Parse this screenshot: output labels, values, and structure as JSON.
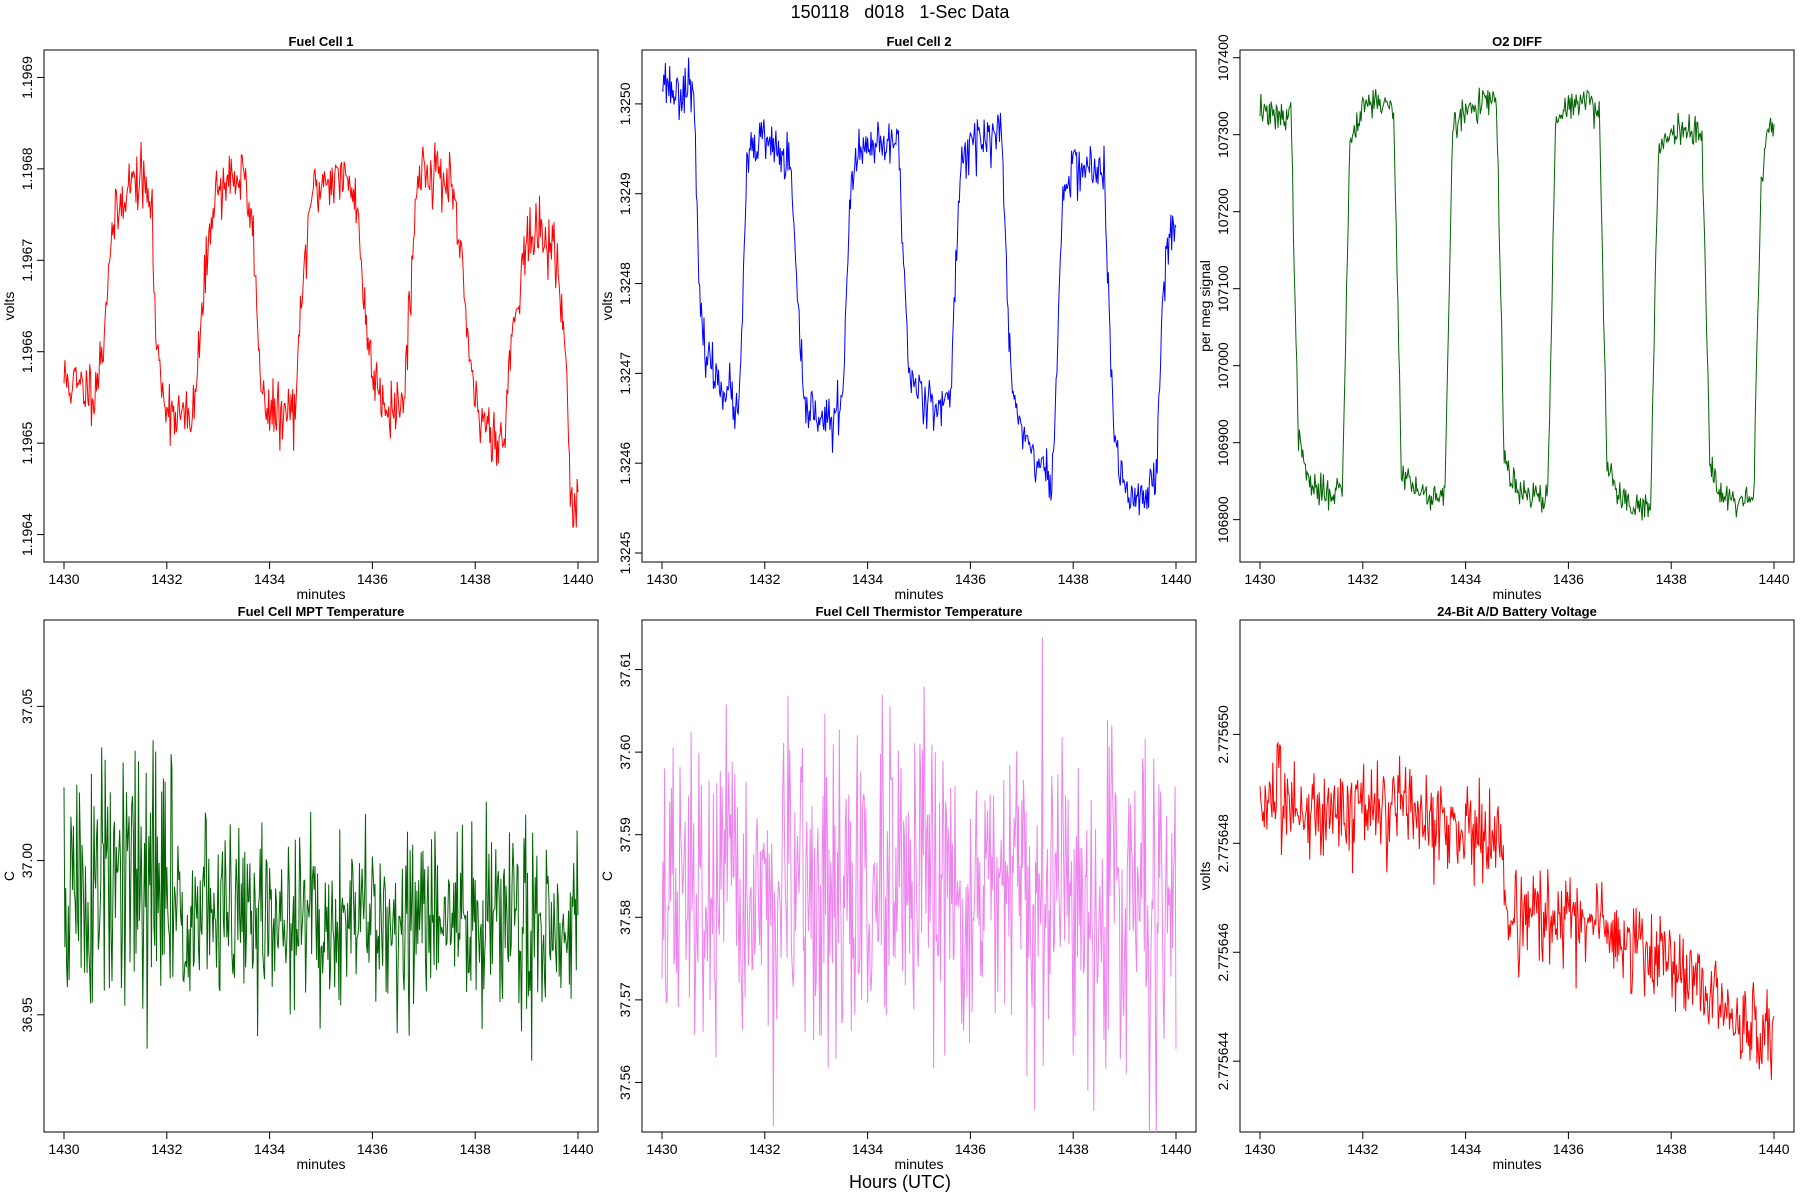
{
  "page": {
    "title": "150118   d018   1-Sec Data",
    "footer_label": "Hours (UTC)"
  },
  "chart_data": [
    {
      "type": "line",
      "title": "Fuel Cell 1",
      "xlabel": "minutes",
      "ylabel": "volts",
      "color": "#ff0000",
      "xlim": [
        1430,
        1440
      ],
      "ylim": [
        1.19637,
        1.19693
      ],
      "xticks": [
        1430,
        1432,
        1434,
        1436,
        1438,
        1440
      ],
      "xtick_labels": [
        "1430",
        "1432",
        "1434",
        "1436",
        "1438",
        "1440"
      ],
      "yticks": [
        1.1964,
        1.1965,
        1.1966,
        1.1967,
        1.1968,
        1.1969
      ],
      "ytick_labels": [
        "1.1964",
        "1.1965",
        "1.1966",
        "1.1967",
        "1.1968",
        "1.1969"
      ],
      "x": [
        1430.0,
        1430.3,
        1430.6,
        1430.75,
        1430.9,
        1431.2,
        1431.5,
        1431.7,
        1431.8,
        1432.0,
        1432.3,
        1432.5,
        1432.7,
        1432.9,
        1433.2,
        1433.5,
        1433.7,
        1433.8,
        1434.0,
        1434.3,
        1434.5,
        1434.65,
        1434.8,
        1435.1,
        1435.4,
        1435.7,
        1435.85,
        1436.0,
        1436.3,
        1436.6,
        1436.75,
        1436.9,
        1437.2,
        1437.5,
        1437.75,
        1437.9,
        1438.1,
        1438.4,
        1438.55,
        1438.75,
        1439.0,
        1439.3,
        1439.6,
        1439.75,
        1439.9,
        1440.0
      ],
      "values": [
        1.19657,
        1.19656,
        1.19656,
        1.1966,
        1.19672,
        1.19678,
        1.19679,
        1.19676,
        1.1966,
        1.19654,
        1.19653,
        1.19652,
        1.19665,
        1.19677,
        1.19679,
        1.19679,
        1.19672,
        1.19658,
        1.19653,
        1.19653,
        1.19654,
        1.19667,
        1.19677,
        1.19679,
        1.19679,
        1.19677,
        1.19664,
        1.19658,
        1.19654,
        1.19654,
        1.19668,
        1.1968,
        1.1968,
        1.19678,
        1.1967,
        1.19657,
        1.19653,
        1.19651,
        1.1965,
        1.19664,
        1.19672,
        1.19673,
        1.1967,
        1.1966,
        1.19642,
        1.19644
      ],
      "noise": 3e-05,
      "seed": 11
    },
    {
      "type": "line",
      "title": "Fuel Cell 2",
      "xlabel": "minutes",
      "ylabel": "volts",
      "color": "#0000ff",
      "xlim": [
        1430,
        1440
      ],
      "ylim": [
        1.32449,
        1.32506
      ],
      "xticks": [
        1430,
        1432,
        1434,
        1436,
        1438,
        1440
      ],
      "xtick_labels": [
        "1430",
        "1432",
        "1434",
        "1436",
        "1438",
        "1440"
      ],
      "yticks": [
        1.3245,
        1.3246,
        1.3247,
        1.3248,
        1.3249,
        1.325
      ],
      "ytick_labels": [
        "1.3245",
        "1.3246",
        "1.3247",
        "1.3248",
        "1.3249",
        "1.3250"
      ],
      "x": [
        1430.0,
        1430.3,
        1430.6,
        1430.75,
        1431.0,
        1431.3,
        1431.5,
        1431.65,
        1431.9,
        1432.2,
        1432.5,
        1432.75,
        1433.0,
        1433.3,
        1433.5,
        1433.7,
        1434.0,
        1434.3,
        1434.6,
        1434.8,
        1435.0,
        1435.3,
        1435.6,
        1435.8,
        1436.0,
        1436.3,
        1436.6,
        1436.8,
        1437.0,
        1437.3,
        1437.6,
        1437.8,
        1438.0,
        1438.3,
        1438.6,
        1438.8,
        1439.0,
        1439.3,
        1439.6,
        1439.75,
        1439.9,
        1440.0
      ],
      "values": [
        1.32503,
        1.32501,
        1.32503,
        1.32475,
        1.3247,
        1.32468,
        1.32465,
        1.32493,
        1.32496,
        1.32495,
        1.32493,
        1.32466,
        1.32466,
        1.32464,
        1.32467,
        1.32493,
        1.32495,
        1.32495,
        1.32496,
        1.3247,
        1.32468,
        1.32467,
        1.32466,
        1.32493,
        1.32496,
        1.32496,
        1.32497,
        1.32468,
        1.32464,
        1.3246,
        1.32458,
        1.3249,
        1.32493,
        1.32493,
        1.32492,
        1.32462,
        1.32457,
        1.32456,
        1.32458,
        1.3248,
        1.32486,
        1.32485
      ],
      "noise": 2.5e-05,
      "seed": 23
    },
    {
      "type": "line",
      "title": "O2 DIFF",
      "xlabel": "minutes",
      "ylabel": "per meg signal",
      "color": "#006400",
      "xlim": [
        1430,
        1440
      ],
      "ylim": [
        106745,
        107410
      ],
      "xticks": [
        1430,
        1432,
        1434,
        1436,
        1438,
        1440
      ],
      "xtick_labels": [
        "1430",
        "1432",
        "1434",
        "1436",
        "1438",
        "1440"
      ],
      "yticks": [
        106800,
        106900,
        107000,
        107100,
        107200,
        107300,
        107400
      ],
      "ytick_labels": [
        "106800",
        "106900",
        "107000",
        "107100",
        "107200",
        "107300",
        "107400"
      ],
      "x": [
        1430.0,
        1430.3,
        1430.6,
        1430.75,
        1431.0,
        1431.3,
        1431.6,
        1431.75,
        1432.0,
        1432.3,
        1432.6,
        1432.75,
        1433.0,
        1433.3,
        1433.6,
        1433.75,
        1434.0,
        1434.3,
        1434.6,
        1434.75,
        1435.0,
        1435.3,
        1435.6,
        1435.75,
        1436.0,
        1436.3,
        1436.6,
        1436.75,
        1437.0,
        1437.3,
        1437.6,
        1437.75,
        1438.0,
        1438.3,
        1438.6,
        1438.75,
        1439.0,
        1439.3,
        1439.6,
        1439.75,
        1439.9,
        1440.0
      ],
      "values": [
        107335,
        107320,
        107330,
        106900,
        106840,
        106835,
        106840,
        107290,
        107340,
        107345,
        107330,
        106870,
        106840,
        106830,
        106835,
        107310,
        107330,
        107340,
        107345,
        106880,
        106835,
        106830,
        106830,
        107310,
        107340,
        107345,
        107335,
        106870,
        106830,
        106820,
        106815,
        107280,
        107305,
        107310,
        107300,
        106880,
        106830,
        106825,
        106830,
        107240,
        107320,
        107300
      ],
      "noise": 18,
      "seed": 37
    },
    {
      "type": "line",
      "title": "Fuel Cell MPT Temperature",
      "xlabel": "minutes",
      "ylabel": "C",
      "color": "#006400",
      "xlim": [
        1430,
        1440
      ],
      "ylim": [
        36.912,
        37.078
      ],
      "xticks": [
        1430,
        1432,
        1434,
        1436,
        1438,
        1440
      ],
      "xtick_labels": [
        "1430",
        "1432",
        "1434",
        "1436",
        "1438",
        "1440"
      ],
      "yticks": [
        36.95,
        37.0,
        37.05
      ],
      "ytick_labels": [
        "36.95",
        "37.00",
        "37.05"
      ],
      "x": [
        1430.0,
        1431.0,
        1432.0,
        1432.2,
        1434.0,
        1436.0,
        1438.0,
        1440.0
      ],
      "values": [
        36.99,
        36.99,
        36.99,
        36.985,
        36.98,
        36.98,
        36.98,
        36.98
      ],
      "noise": 0.045,
      "noise_decay": [
        1432.2,
        0.6
      ],
      "seed": 51
    },
    {
      "type": "line",
      "title": "Fuel Cell Thermistor Temperature",
      "xlabel": "minutes",
      "ylabel": "C",
      "color": "#ee82ee",
      "xlim": [
        1430,
        1440
      ],
      "ylim": [
        37.554,
        37.616
      ],
      "xticks": [
        1430,
        1432,
        1434,
        1436,
        1438,
        1440
      ],
      "xtick_labels": [
        "1430",
        "1432",
        "1434",
        "1436",
        "1438",
        "1440"
      ],
      "yticks": [
        37.56,
        37.57,
        37.58,
        37.59,
        37.6,
        37.61
      ],
      "ytick_labels": [
        "37.56",
        "37.57",
        "37.58",
        "37.59",
        "37.60",
        "37.61"
      ],
      "x": [
        1430.0,
        1435.0,
        1440.0
      ],
      "values": [
        37.582,
        37.582,
        37.582
      ],
      "noise": 0.017,
      "seed": 67
    },
    {
      "type": "line",
      "title": "24-Bit A/D Battery Voltage",
      "xlabel": "minutes",
      "ylabel": "volts",
      "color": "#ff0000",
      "xlim": [
        1430,
        1440
      ],
      "ylim": [
        2.7756427,
        2.7756521
      ],
      "xticks": [
        1430,
        1432,
        1434,
        1436,
        1438,
        1440
      ],
      "xtick_labels": [
        "1430",
        "1432",
        "1434",
        "1436",
        "1438",
        "1440"
      ],
      "yticks": [
        2.775644,
        2.775646,
        2.775648,
        2.77565
      ],
      "ytick_labels": [
        "2.775644",
        "2.775646",
        "2.775648",
        "2.775650"
      ],
      "x": [
        1430.0,
        1431.0,
        1432.0,
        1433.0,
        1434.0,
        1434.7,
        1434.8,
        1436.0,
        1437.0,
        1438.0,
        1439.0,
        1440.0
      ],
      "values": [
        2.7756488,
        2.7756486,
        2.7756487,
        2.7756485,
        2.7756483,
        2.775648,
        2.7756467,
        2.7756466,
        2.7756463,
        2.7756458,
        2.775645,
        2.7756443
      ],
      "noise": 8e-07,
      "seed": 83
    }
  ]
}
